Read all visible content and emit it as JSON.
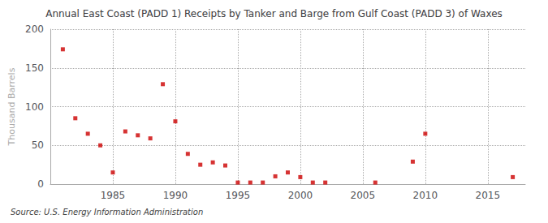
{
  "chart_data": {
    "type": "scatter",
    "title": "Annual East Coast (PADD 1) Receipts by Tanker and Barge from Gulf Coast (PADD 3) of Waxes",
    "ylabel": "Thousand Barrels",
    "source": "Source: U.S. Energy Information Administration",
    "x": [
      1981,
      1982,
      1983,
      1984,
      1985,
      1986,
      1987,
      1988,
      1989,
      1990,
      1991,
      1992,
      1993,
      1994,
      1995,
      1996,
      1997,
      1998,
      1999,
      2000,
      2001,
      2002,
      2006,
      2009,
      2010,
      2017
    ],
    "values": [
      174,
      85,
      65,
      50,
      15,
      68,
      63,
      59,
      129,
      81,
      39,
      25,
      28,
      24,
      2,
      2,
      2,
      10,
      15,
      9,
      2,
      2,
      2,
      29,
      65,
      9
    ],
    "color": "#cc0000",
    "marker": "square",
    "xlim": [
      1980,
      2018
    ],
    "xticks": [
      1985,
      1990,
      1995,
      2000,
      2005,
      2010,
      2015
    ],
    "ylim": [
      0,
      200
    ],
    "yticks": [
      0,
      50,
      100,
      150,
      200
    ],
    "grid": true
  }
}
